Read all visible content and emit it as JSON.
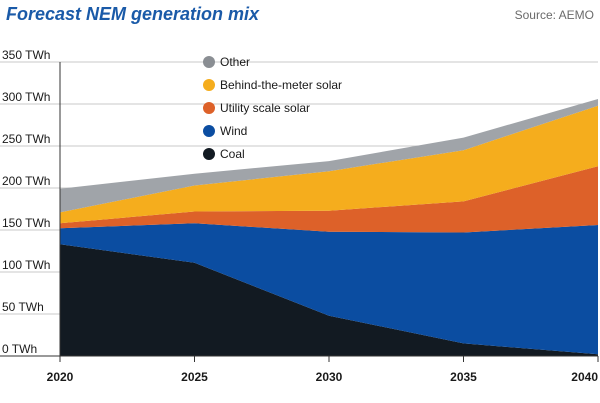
{
  "title": "Forecast NEM generation mix",
  "source": "Source: AEMO",
  "colors": {
    "Coal": "#121a22",
    "Wind": "#0b4da1",
    "Utility scale solar": "#dd6129",
    "Behind-the-meter solar": "#f5ad1d",
    "Other": "#a0a4a9",
    "legend_other_dot": "#8a8e93",
    "grid": "#c8c8c8",
    "axis": "#333333"
  },
  "chart_data": {
    "type": "area",
    "stacked": true,
    "title": "Forecast NEM generation mix",
    "x": [
      2020,
      2025,
      2030,
      2035,
      2040
    ],
    "x_tick_labels": [
      "2020",
      "2025",
      "2030",
      "2035",
      "2040"
    ],
    "ylim": [
      0,
      350
    ],
    "y_ticks": [
      0,
      50,
      100,
      150,
      200,
      250,
      300,
      350
    ],
    "y_tick_labels": [
      "0 TWh",
      "50 TWh",
      "100 TWh",
      "150 TWh",
      "200 TWh",
      "250 TWh",
      "300 TWh",
      "350 TWh"
    ],
    "grid": true,
    "legend_position": "top-center",
    "legend_order": [
      "Other",
      "Behind-the-meter solar",
      "Utility scale solar",
      "Wind",
      "Coal"
    ],
    "series": [
      {
        "name": "Coal",
        "values": [
          133,
          111,
          48,
          15,
          2
        ]
      },
      {
        "name": "Wind",
        "values": [
          19,
          47,
          100,
          132,
          154
        ]
      },
      {
        "name": "Utility scale solar",
        "values": [
          6,
          14,
          25,
          37,
          70
        ]
      },
      {
        "name": "Behind-the-meter solar",
        "values": [
          13,
          31,
          47,
          61,
          72
        ]
      },
      {
        "name": "Other",
        "values": [
          28,
          14,
          12,
          15,
          8
        ]
      }
    ]
  }
}
